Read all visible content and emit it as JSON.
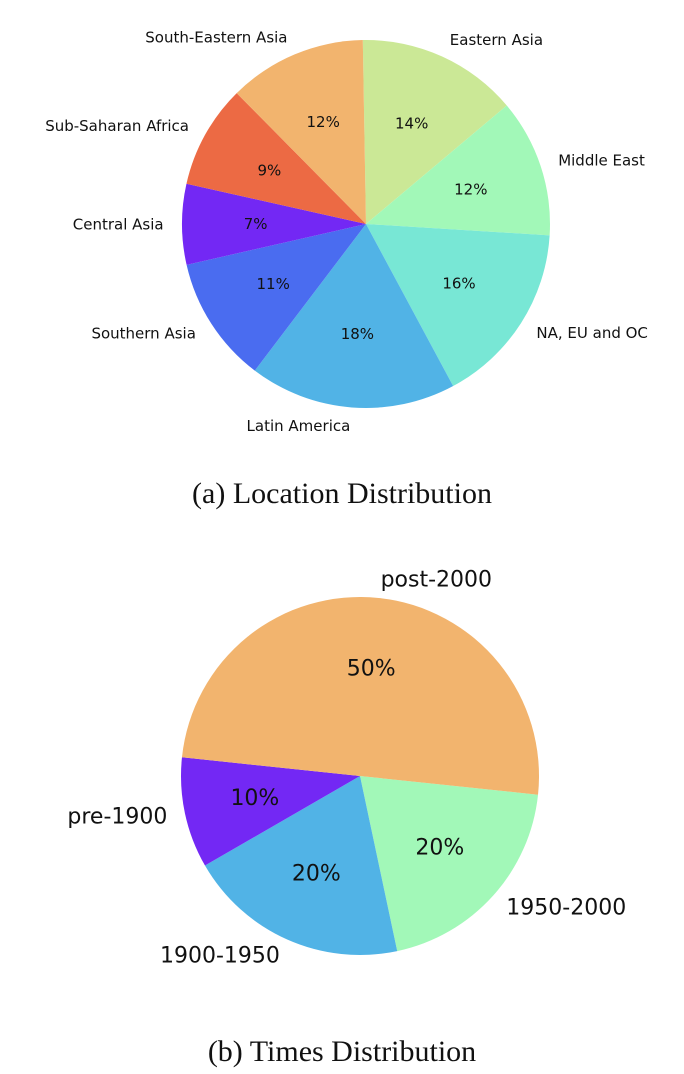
{
  "chart_data": [
    {
      "type": "pie",
      "caption": "(a) Location Distribution",
      "slices": [
        {
          "label": "Eastern Asia",
          "value": 14,
          "pct_label": "14%",
          "color": "#cbe896"
        },
        {
          "label": "Middle East",
          "value": 12,
          "pct_label": "12%",
          "color": "#a2f8b8"
        },
        {
          "label": "NA, EU and OC",
          "value": 16,
          "pct_label": "16%",
          "color": "#78e7d5"
        },
        {
          "label": "Latin America",
          "value": 18,
          "pct_label": "18%",
          "color": "#51b3e6"
        },
        {
          "label": "Southern Asia",
          "value": 11,
          "pct_label": "11%",
          "color": "#4a6cf0"
        },
        {
          "label": "Central Asia",
          "value": 7,
          "pct_label": "7%",
          "color": "#7328f4"
        },
        {
          "label": "Sub-Saharan Africa",
          "value": 9,
          "pct_label": "9%",
          "color": "#ec6a44"
        },
        {
          "label": "South-Eastern Asia",
          "value": 12,
          "pct_label": "12%",
          "color": "#f2b46e"
        }
      ]
    },
    {
      "type": "pie",
      "caption": "(b) Times Distribution",
      "slices": [
        {
          "label": "1950-2000",
          "value": 20,
          "pct_label": "20%",
          "color": "#a2f8b8"
        },
        {
          "label": "1900-1950",
          "value": 20,
          "pct_label": "20%",
          "color": "#51b3e6"
        },
        {
          "label": "pre-1900",
          "value": 10,
          "pct_label": "10%",
          "color": "#7328f4"
        },
        {
          "label": "post-2000",
          "value": 50,
          "pct_label": "50%",
          "color": "#f2b46e"
        }
      ]
    }
  ]
}
